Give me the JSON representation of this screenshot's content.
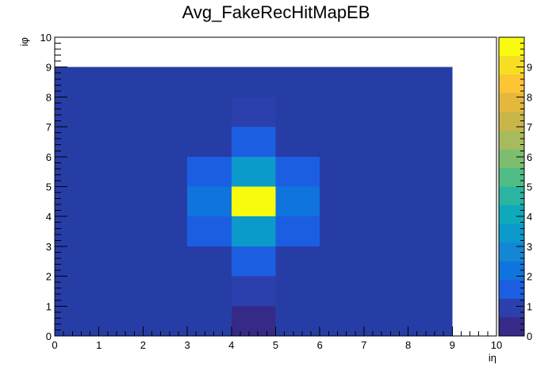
{
  "chart_data": {
    "type": "heatmap",
    "title": "Avg_FakeRecHitMapEB",
    "xlabel": "iη",
    "ylabel": "iφ",
    "xlim": [
      0,
      10
    ],
    "ylim": [
      0,
      10
    ],
    "x_ticks": [
      0,
      1,
      2,
      3,
      4,
      5,
      6,
      7,
      8,
      9,
      10
    ],
    "y_ticks": [
      0,
      1,
      2,
      3,
      4,
      5,
      6,
      7,
      8,
      9,
      10
    ],
    "zlim": [
      0,
      10
    ],
    "z_ticks": [
      0,
      1,
      2,
      3,
      4,
      5,
      6,
      7,
      8,
      9
    ],
    "bin_width": 1,
    "filled_region": {
      "x": [
        0,
        9
      ],
      "y": [
        0,
        9
      ]
    },
    "grid": false,
    "colormap": "parula",
    "colorbar": "right",
    "cells": [
      {
        "x": 4,
        "y": 0,
        "value": 0.0
      },
      {
        "x": 4,
        "y": 1,
        "value": 1.2
      },
      {
        "x": 4,
        "y": 2,
        "value": 1.4
      },
      {
        "x": 3,
        "y": 3,
        "value": 1.4
      },
      {
        "x": 4,
        "y": 3,
        "value": 3.4
      },
      {
        "x": 5,
        "y": 3,
        "value": 1.4
      },
      {
        "x": 3,
        "y": 4,
        "value": 2.0
      },
      {
        "x": 4,
        "y": 4,
        "value": 10.0
      },
      {
        "x": 5,
        "y": 4,
        "value": 2.0
      },
      {
        "x": 3,
        "y": 5,
        "value": 1.4
      },
      {
        "x": 4,
        "y": 5,
        "value": 3.4
      },
      {
        "x": 5,
        "y": 5,
        "value": 1.4
      },
      {
        "x": 4,
        "y": 6,
        "value": 1.4
      },
      {
        "x": 4,
        "y": 7,
        "value": 1.2
      }
    ],
    "background_value": 0.0
  },
  "colors": {
    "palette": [
      "#352a87",
      "#2b40ad",
      "#1c5ee2",
      "#0f74dd",
      "#1487d4",
      "#0b9aca",
      "#0ea9bb",
      "#2ab4a1",
      "#50bc86",
      "#7dbd70",
      "#a7bb5c",
      "#c9b649",
      "#e4b73d",
      "#fbc534",
      "#f6df23",
      "#f9fb0e"
    ],
    "map_background": "#273da6"
  }
}
